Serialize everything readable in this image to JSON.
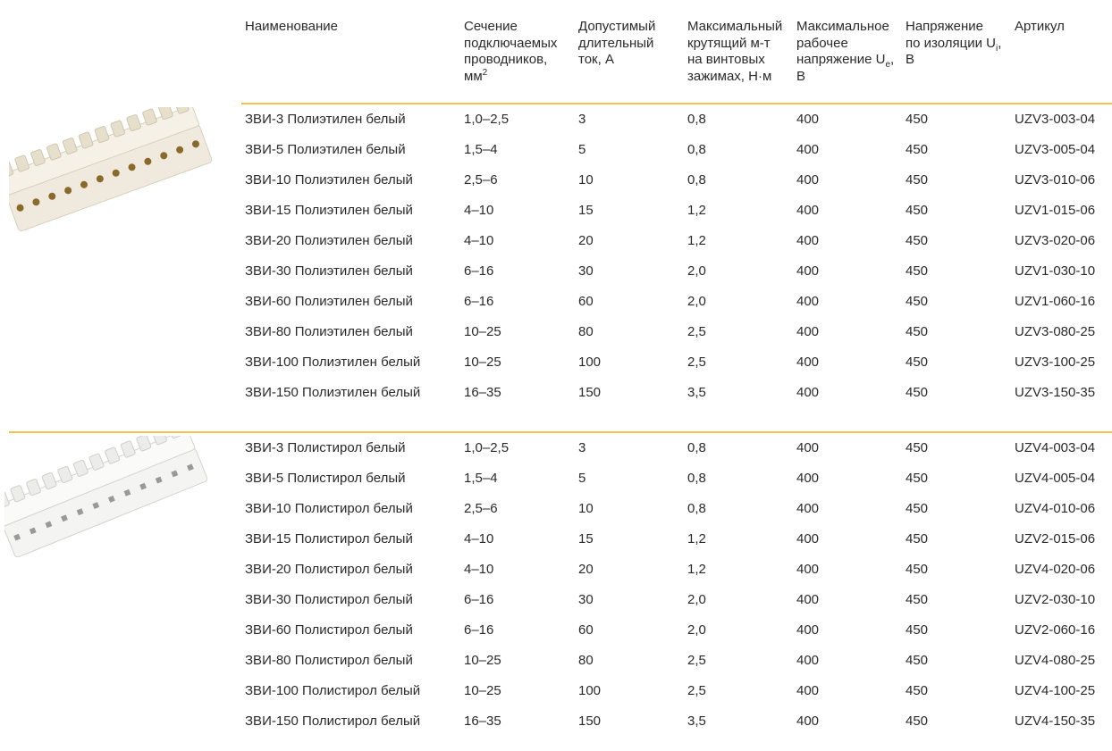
{
  "header": [
    [
      "Наименование"
    ],
    [
      "Сечение",
      "подключаемых",
      "проводников,",
      [
        "мм",
        {
          "sup": "2"
        }
      ]
    ],
    [
      "Допустимый",
      "длительный",
      "ток, А"
    ],
    [
      "Максимальный",
      "крутящий м-т",
      "на винтовых",
      "зажимах, Н·м"
    ],
    [
      "Максимальное",
      "рабочее",
      [
        "напряжение U",
        {
          "sub": "e"
        },
        ","
      ],
      "В"
    ],
    [
      "Напряжение",
      [
        "по изоляции U",
        {
          "sub": "i"
        },
        ","
      ],
      "В"
    ],
    [
      "Артикул"
    ]
  ],
  "groups": [
    {
      "rows": [
        [
          "ЗВИ-3 Полиэтилен белый",
          "1,0–2,5",
          "3",
          "0,8",
          "400",
          "450",
          "UZV3-003-04"
        ],
        [
          "ЗВИ-5 Полиэтилен белый",
          "1,5–4",
          "5",
          "0,8",
          "400",
          "450",
          "UZV3-005-04"
        ],
        [
          "ЗВИ-10 Полиэтилен белый",
          "2,5–6",
          "10",
          "0,8",
          "400",
          "450",
          "UZV3-010-06"
        ],
        [
          "ЗВИ-15 Полиэтилен белый",
          "4–10",
          "15",
          "1,2",
          "400",
          "450",
          "UZV1-015-06"
        ],
        [
          "ЗВИ-20 Полиэтилен белый",
          "4–10",
          "20",
          "1,2",
          "400",
          "450",
          "UZV3-020-06"
        ],
        [
          "ЗВИ-30 Полиэтилен белый",
          "6–16",
          "30",
          "2,0",
          "400",
          "450",
          "UZV1-030-10"
        ],
        [
          "ЗВИ-60 Полиэтилен белый",
          "6–16",
          "60",
          "2,0",
          "400",
          "450",
          "UZV1-060-16"
        ],
        [
          "ЗВИ-80 Полиэтилен белый",
          "10–25",
          "80",
          "2,5",
          "400",
          "450",
          "UZV3-080-25"
        ],
        [
          "ЗВИ-100 Полиэтилен белый",
          "10–25",
          "100",
          "2,5",
          "400",
          "450",
          "UZV3-100-25"
        ],
        [
          "ЗВИ-150 Полиэтилен белый",
          "16–35",
          "150",
          "3,5",
          "400",
          "450",
          "UZV3-150-35"
        ]
      ]
    },
    {
      "rows": [
        [
          "ЗВИ-3 Полистирол белый",
          "1,0–2,5",
          "3",
          "0,8",
          "400",
          "450",
          "UZV4-003-04"
        ],
        [
          "ЗВИ-5 Полистирол белый",
          "1,5–4",
          "5",
          "0,8",
          "400",
          "450",
          "UZV4-005-04"
        ],
        [
          "ЗВИ-10 Полистирол белый",
          "2,5–6",
          "10",
          "0,8",
          "400",
          "450",
          "UZV4-010-06"
        ],
        [
          "ЗВИ-15 Полистирол белый",
          "4–10",
          "15",
          "1,2",
          "400",
          "450",
          "UZV2-015-06"
        ],
        [
          "ЗВИ-20 Полистирол белый",
          "4–10",
          "20",
          "1,2",
          "400",
          "450",
          "UZV4-020-06"
        ],
        [
          "ЗВИ-30 Полистирол белый",
          "6–16",
          "30",
          "2,0",
          "400",
          "450",
          "UZV2-030-10"
        ],
        [
          "ЗВИ-60 Полистирол белый",
          "6–16",
          "60",
          "2,0",
          "400",
          "450",
          "UZV2-060-16"
        ],
        [
          "ЗВИ-80 Полистирол белый",
          "10–25",
          "80",
          "2,5",
          "400",
          "450",
          "UZV4-080-25"
        ],
        [
          "ЗВИ-100 Полистирол белый",
          "10–25",
          "100",
          "2,5",
          "400",
          "450",
          "UZV4-100-25"
        ],
        [
          "ЗВИ-150 Полистирол белый",
          "16–35",
          "150",
          "3,5",
          "400",
          "450",
          "UZV4-150-35"
        ]
      ]
    }
  ]
}
